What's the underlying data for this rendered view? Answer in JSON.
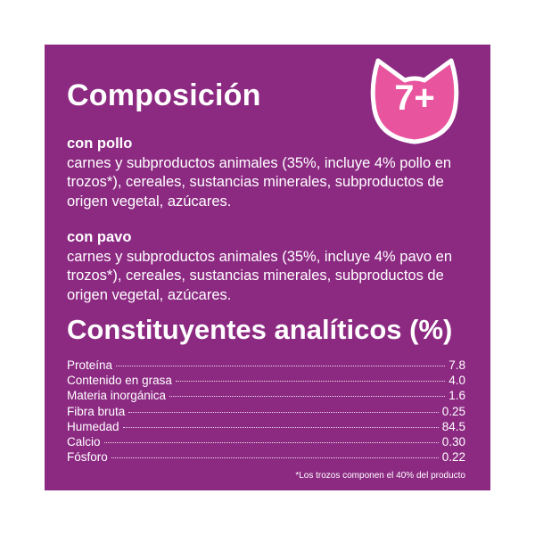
{
  "colors": {
    "panel_background": "#8c2a82",
    "badge_fill": "#e8559e",
    "badge_outline": "#ffffff",
    "text": "#ffffff"
  },
  "composition": {
    "title": "Composición",
    "sections": [
      {
        "subhead": "con pollo",
        "body": "carnes y subproductos animales (35%, incluye 4% pollo en trozos*), cereales, sustancias minerales, subproductos de origen vegetal, azúcares."
      },
      {
        "subhead": "con pavo",
        "body": "carnes y subproductos animales (35%, incluye 4% pavo en trozos*), cereales, sustancias minerales, subproductos de origen vegetal, azúcares."
      }
    ]
  },
  "badge": {
    "icon": "cat-head-icon",
    "label": "7+"
  },
  "analytics": {
    "title": "Constituyentes analíticos (%)",
    "rows": [
      {
        "label": "Proteína",
        "value": "7.8"
      },
      {
        "label": "Contenido en grasa",
        "value": "4.0"
      },
      {
        "label": "Materia inorgánica",
        "value": "1.6"
      },
      {
        "label": "Fibra bruta",
        "value": "0.25"
      },
      {
        "label": "Humedad",
        "value": "84.5"
      },
      {
        "label": "Calcio",
        "value": "0.30"
      },
      {
        "label": "Fósforo",
        "value": "0.22"
      }
    ],
    "footnote": "*Los trozos componen el 40% del producto"
  }
}
